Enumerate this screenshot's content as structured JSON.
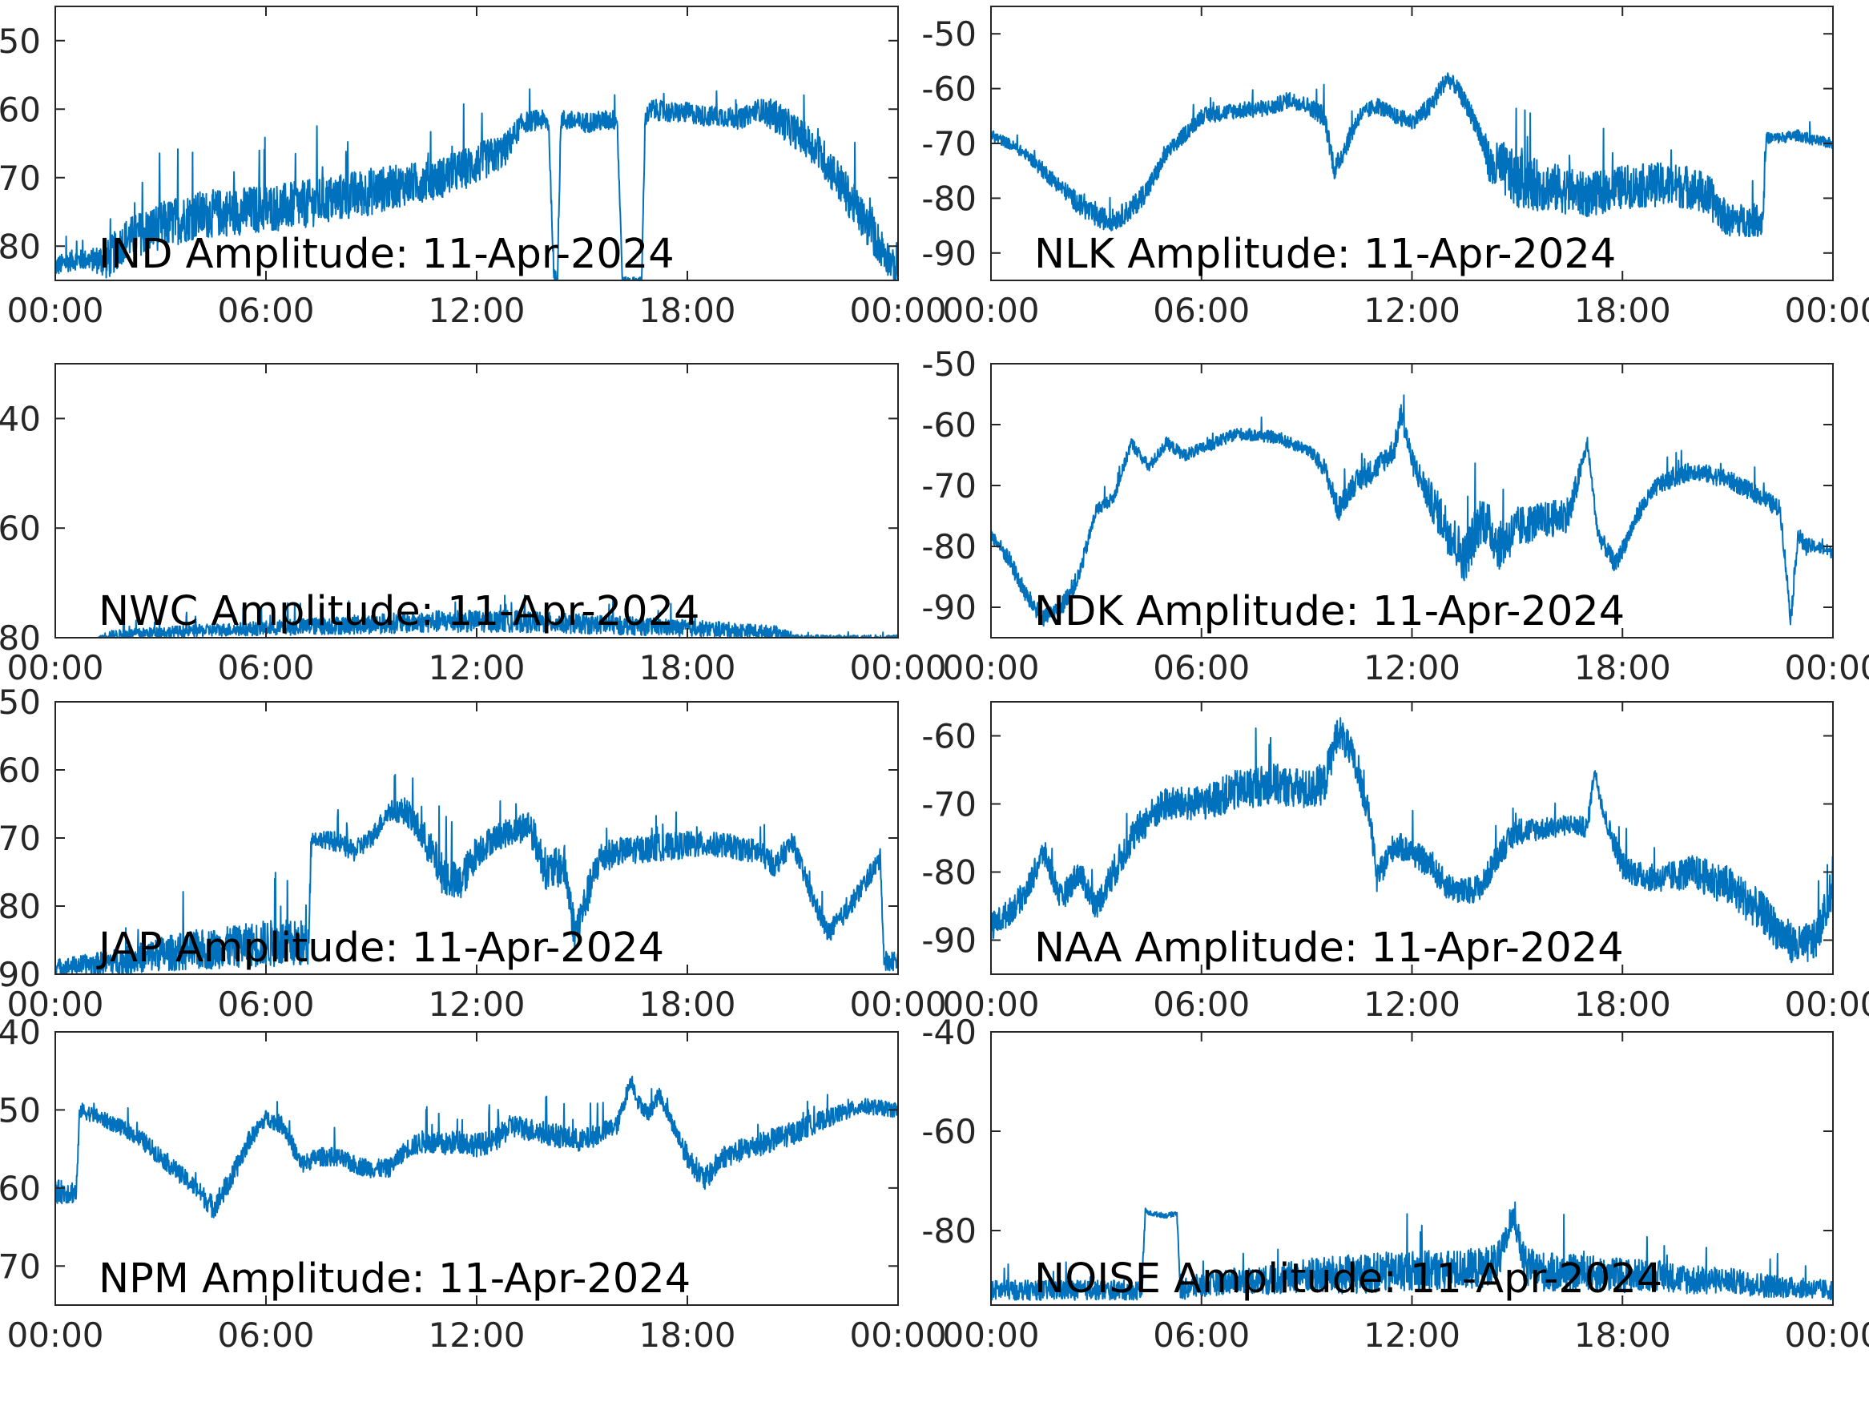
{
  "figure": {
    "x_tick_labels": [
      "00:00",
      "06:00",
      "12:00",
      "18:00",
      "00:00"
    ],
    "line_color": "#0072BD"
  },
  "chart_data": [
    {
      "type": "line",
      "title": "IND Amplitude: 11-Apr-2024",
      "x_range": [
        "00:00",
        "24:00"
      ],
      "ylim": [
        -85,
        -45
      ],
      "y_ticks": [
        -50,
        -60,
        -70,
        -80
      ],
      "y_tick_labels": [
        "50",
        "60",
        "70",
        "80"
      ],
      "series": [
        {
          "x": [
            0,
            0.5,
            1,
            1.5,
            2,
            3,
            4,
            5,
            6,
            7,
            8,
            9,
            10,
            11,
            12,
            12.8,
            13.3,
            13.8,
            14.05,
            14.2,
            14.3,
            14.4,
            15,
            16,
            16.15,
            16.2,
            16.5,
            16.7,
            16.8,
            16.85,
            17,
            17.5,
            18,
            18.5,
            19,
            19.5,
            20,
            20.5,
            21,
            21.5,
            22,
            22.5,
            23,
            23.5,
            24
          ],
          "y": [
            -83,
            -82,
            -82,
            -82,
            -79,
            -77,
            -75.5,
            -75,
            -74.5,
            -74,
            -73,
            -72,
            -71,
            -70,
            -68,
            -66,
            -62,
            -61.5,
            -62,
            -85,
            -85,
            -61.5,
            -62,
            -61.5,
            -85,
            -85,
            -85,
            -85,
            -61,
            -61,
            -60,
            -60.5,
            -60.5,
            -61,
            -61,
            -61.5,
            -60,
            -61,
            -63,
            -65,
            -68,
            -72,
            -76,
            -80,
            -84
          ],
          "y_spread": [
            1.5,
            1.5,
            1.5,
            3,
            3,
            3.5,
            3.5,
            3.5,
            3.5,
            3.5,
            3.5,
            3.5,
            3,
            3,
            3,
            2.5,
            1.5,
            1.5,
            1.5,
            0.5,
            0.5,
            1.5,
            1.5,
            1.5,
            0.5,
            0.5,
            0.5,
            0.5,
            1.5,
            1.5,
            1.5,
            1.5,
            1.5,
            1.5,
            1.5,
            1.5,
            1.5,
            2.5,
            2.5,
            2.5,
            3,
            3,
            3,
            3,
            2
          ]
        }
      ]
    },
    {
      "type": "line",
      "title": "NLK Amplitude: 11-Apr-2024",
      "x_range": [
        "00:00",
        "24:00"
      ],
      "ylim": [
        -95,
        -45
      ],
      "y_ticks": [
        -50,
        -60,
        -70,
        -80,
        -90
      ],
      "y_tick_labels": [
        "-50",
        "-60",
        "-70",
        "-80",
        "-90"
      ],
      "series": [
        {
          "x": [
            0,
            0.5,
            1,
            1.5,
            2,
            2.5,
            3,
            3.5,
            4,
            4.5,
            5,
            6,
            7,
            8,
            8.5,
            9,
            9.5,
            9.8,
            10,
            10.5,
            11,
            11.5,
            12,
            12.5,
            13,
            13.3,
            13.8,
            14.3,
            14.5,
            15,
            16,
            17,
            18,
            19,
            20,
            20.5,
            21,
            21.5,
            22,
            22.1,
            22.5,
            23,
            23.5,
            24
          ],
          "y": [
            -68.5,
            -70,
            -72,
            -75,
            -78,
            -81,
            -83.5,
            -84,
            -82,
            -78,
            -72,
            -65,
            -64,
            -63.5,
            -62,
            -63,
            -65,
            -75,
            -72,
            -65,
            -63,
            -65,
            -66,
            -63.5,
            -58,
            -60,
            -66,
            -75,
            -74,
            -77,
            -78,
            -79.5,
            -78,
            -77.5,
            -78,
            -80,
            -84,
            -84,
            -84,
            -69,
            -69,
            -68.5,
            -69.5,
            -70
          ],
          "y_spread": [
            1,
            1,
            1,
            1.5,
            1.5,
            2,
            2,
            2,
            2,
            2,
            1.5,
            1.5,
            1.5,
            1.5,
            1.5,
            1.5,
            2,
            2,
            2,
            1.5,
            1.5,
            1.5,
            1.5,
            2,
            1.5,
            1.5,
            2,
            4,
            5,
            5,
            4.5,
            4,
            4,
            4,
            4,
            4,
            3,
            3,
            3,
            1,
            1,
            1,
            1,
            1
          ]
        }
      ]
    },
    {
      "type": "line",
      "title": "NWC Amplitude: 11-Apr-2024",
      "x_range": [
        "00:00",
        "24:00"
      ],
      "ylim": [
        -80,
        -30
      ],
      "y_ticks": [
        -40,
        -60,
        -80
      ],
      "y_tick_labels": [
        "40",
        "60",
        "80"
      ],
      "series": [
        {
          "x": [
            0,
            1.2,
            1.5,
            3,
            5,
            7,
            9,
            11,
            13,
            15,
            17,
            19,
            20.5,
            21.2
          ],
          "y": [
            -80,
            -80,
            -79.5,
            -79,
            -78.5,
            -78,
            -77.5,
            -77,
            -77,
            -77.5,
            -78,
            -78.5,
            -79,
            -80
          ],
          "y_spread": [
            0,
            0,
            0.8,
            1,
            1.2,
            1.5,
            1.8,
            2,
            2,
            1.8,
            1.6,
            1.4,
            1.2,
            0.5
          ]
        }
      ]
    },
    {
      "type": "line",
      "title": "NDK Amplitude: 11-Apr-2024",
      "x_range": [
        "00:00",
        "24:00"
      ],
      "ylim": [
        -95,
        -50
      ],
      "y_ticks": [
        -50,
        -60,
        -70,
        -80,
        -90
      ],
      "y_tick_labels": [
        "-50",
        "-60",
        "-70",
        "-80",
        "-90"
      ],
      "series": [
        {
          "x": [
            0,
            0.5,
            1,
            1.5,
            2,
            2.5,
            3,
            3.5,
            4,
            4.5,
            5,
            5.5,
            6,
            7,
            8,
            9,
            9.5,
            9.9,
            10.3,
            11,
            11.5,
            11.7,
            12,
            12.5,
            13,
            13.5,
            14,
            14.5,
            15,
            15.5,
            16,
            16.5,
            17,
            17.1,
            17.3,
            17.8,
            18.5,
            19,
            20,
            21,
            22,
            22.5,
            22.8,
            23,
            23.2,
            23.5,
            24
          ],
          "y": [
            -78,
            -82,
            -88,
            -92,
            -90,
            -85,
            -74,
            -72,
            -63,
            -67,
            -63,
            -65,
            -64,
            -61.5,
            -62,
            -64,
            -67,
            -74,
            -70,
            -67,
            -64,
            -58,
            -66,
            -72,
            -77,
            -82,
            -75,
            -80,
            -77,
            -76,
            -75.5,
            -74.5,
            -63,
            -68,
            -78,
            -83,
            -74,
            -70,
            -67.5,
            -69,
            -72,
            -74,
            -92,
            -78,
            -80,
            -80,
            -81
          ],
          "y_spread": [
            1,
            1.5,
            1.5,
            1.5,
            1.5,
            1.5,
            1,
            1,
            1,
            1,
            1,
            1,
            1,
            1,
            1,
            1,
            1.5,
            2,
            2,
            2,
            2,
            2,
            2,
            3,
            4,
            4,
            4,
            4,
            3.5,
            3,
            3,
            3,
            1,
            1,
            1.5,
            1.5,
            1.5,
            1.5,
            1.5,
            1.5,
            1.5,
            1.5,
            1.5,
            1.5,
            1.5,
            1,
            1
          ]
        }
      ]
    },
    {
      "type": "line",
      "title": "JAP Amplitude: 11-Apr-2024",
      "x_range": [
        "00:00",
        "24:00"
      ],
      "ylim": [
        -90,
        -50
      ],
      "y_ticks": [
        -50,
        -60,
        -70,
        -80,
        -90
      ],
      "y_tick_labels": [
        "50",
        "60",
        "70",
        "80",
        "90"
      ],
      "series": [
        {
          "x": [
            0,
            1,
            2,
            3,
            4,
            5,
            6,
            7,
            7.2,
            7.3,
            8,
            8.5,
            9,
            9.5,
            10,
            10.5,
            11,
            11.5,
            12,
            12.5,
            13,
            13.5,
            14,
            14.5,
            14.8,
            15.5,
            16,
            17,
            18,
            19,
            20,
            20.5,
            21,
            21.5,
            22,
            22.5,
            23,
            23.5,
            23.6,
            24
          ],
          "y": [
            -89,
            -88.5,
            -88,
            -87,
            -86.5,
            -86,
            -85.5,
            -85.5,
            -86,
            -70,
            -70.5,
            -72,
            -70,
            -66,
            -66,
            -70,
            -75,
            -77,
            -72,
            -70,
            -69,
            -68,
            -75,
            -74,
            -84,
            -73,
            -72,
            -71.5,
            -71,
            -71,
            -72,
            -74,
            -70.5,
            -78,
            -84,
            -81,
            -77,
            -73,
            -88,
            -88
          ],
          "y_spread": [
            1.2,
            1.5,
            2,
            2.5,
            3,
            3,
            3.5,
            3.5,
            3,
            1,
            1.5,
            1.5,
            1.5,
            1.5,
            2,
            2.5,
            3,
            3,
            2.5,
            2,
            2,
            2.5,
            3,
            3,
            3,
            2.5,
            2,
            2,
            2,
            1.8,
            1.8,
            1.8,
            1.5,
            1.5,
            1.5,
            1.5,
            1.5,
            1.5,
            1.5,
            1.5
          ]
        }
      ]
    },
    {
      "type": "line",
      "title": "NAA Amplitude: 11-Apr-2024",
      "x_range": [
        "00:00",
        "24:00"
      ],
      "ylim": [
        -95,
        -55
      ],
      "y_ticks": [
        -60,
        -70,
        -80,
        -90
      ],
      "y_tick_labels": [
        "-60",
        "-70",
        "-80",
        "-90"
      ],
      "series": [
        {
          "x": [
            0,
            0.5,
            1,
            1.5,
            2,
            2.5,
            3,
            3.5,
            4,
            4.5,
            5,
            6,
            7,
            8,
            9,
            9.5,
            9.9,
            10.3,
            10.8,
            11,
            11.1,
            11.5,
            12,
            12.5,
            13,
            13.5,
            14,
            14.5,
            15,
            16,
            16.5,
            17,
            17.2,
            17.5,
            18,
            18.5,
            19,
            20,
            21,
            22,
            22.5,
            23,
            23.5,
            24
          ],
          "y": [
            -88,
            -86,
            -83,
            -77,
            -84,
            -80,
            -85,
            -80,
            -75,
            -72,
            -70,
            -70,
            -68,
            -67,
            -68,
            -67,
            -59,
            -63,
            -72,
            -81,
            -80,
            -76,
            -77,
            -79,
            -82,
            -83,
            -82,
            -77,
            -74,
            -73.5,
            -73,
            -73.5,
            -65,
            -72,
            -79,
            -80.5,
            -81,
            -80,
            -82,
            -86,
            -89,
            -91,
            -90,
            -83
          ],
          "y_spread": [
            2,
            2,
            2,
            2,
            2,
            2,
            2,
            2.5,
            2.5,
            2.5,
            2.5,
            2.5,
            3,
            3,
            3,
            3,
            2.5,
            2.5,
            2,
            2,
            2,
            2,
            2,
            2,
            2,
            2,
            2,
            2,
            2,
            1.5,
            1.5,
            1.5,
            1,
            1.5,
            2,
            2,
            2,
            2.5,
            3,
            3,
            3,
            3,
            3,
            2
          ]
        }
      ]
    },
    {
      "type": "line",
      "title": "NPM Amplitude: 11-Apr-2024",
      "x_range": [
        "00:00",
        "24:00"
      ],
      "ylim": [
        -75,
        -40
      ],
      "y_ticks": [
        -40,
        -50,
        -60,
        -70
      ],
      "y_tick_labels": [
        "40",
        "50",
        "60",
        "70"
      ],
      "series": [
        {
          "x": [
            0,
            0.6,
            0.7,
            1,
            1.5,
            2,
            2.5,
            3,
            3.5,
            4,
            4.5,
            5,
            5.5,
            6,
            6.5,
            7,
            7.5,
            8,
            8.5,
            9,
            9.5,
            10,
            10.5,
            11,
            11.5,
            12,
            12.5,
            13,
            14,
            15,
            16,
            16.4,
            16.6,
            16.9,
            17.2,
            17.5,
            18,
            18.5,
            19,
            20,
            21,
            22,
            23,
            24
          ],
          "y": [
            -60.5,
            -60.5,
            -50,
            -50.5,
            -51.5,
            -52.5,
            -54,
            -56,
            -58,
            -60,
            -62.5,
            -59,
            -54,
            -51,
            -52,
            -57,
            -56,
            -56,
            -57,
            -57.5,
            -57.5,
            -55,
            -54,
            -54.5,
            -54,
            -54.5,
            -54,
            -52,
            -53,
            -54,
            -52,
            -46,
            -49,
            -50.5,
            -48,
            -51,
            -56,
            -59,
            -56,
            -54.5,
            -53,
            -51,
            -49.5,
            -50
          ],
          "y_spread": [
            1.5,
            1.5,
            1,
            1,
            1,
            1,
            1.2,
            1.2,
            1.2,
            1.2,
            1.5,
            1.5,
            1.2,
            1,
            1.2,
            1.2,
            1.2,
            1.2,
            1.2,
            1.2,
            1.2,
            1.2,
            1.5,
            1.5,
            1.5,
            1.5,
            1.5,
            1.5,
            1.5,
            1.5,
            1.2,
            1,
            1,
            1,
            1,
            1,
            1.5,
            1.5,
            1.5,
            1.5,
            1.5,
            1.2,
            1,
            1
          ]
        }
      ]
    },
    {
      "type": "line",
      "title": "NOISE Amplitude: 11-Apr-2024",
      "x_range": [
        "00:00",
        "24:00"
      ],
      "ylim": [
        -95,
        -40
      ],
      "y_ticks": [
        -40,
        -60,
        -80
      ],
      "y_tick_labels": [
        "-40",
        "-60",
        "-80"
      ],
      "series": [
        {
          "x": [
            0,
            1,
            2,
            3,
            4,
            4.3,
            4.4,
            4.5,
            5,
            5.3,
            5.4,
            6,
            7,
            8,
            9,
            10,
            11,
            12,
            13,
            14,
            14.5,
            14.9,
            15.2,
            15.5,
            16,
            17,
            18,
            19,
            20,
            21,
            22,
            23,
            24
          ],
          "y": [
            -92,
            -92,
            -92,
            -92,
            -92,
            -92,
            -76,
            -76.5,
            -77,
            -76.5,
            -92,
            -91,
            -90,
            -90,
            -89,
            -89,
            -88.5,
            -88,
            -88,
            -87.5,
            -86,
            -77,
            -87,
            -88,
            -88.5,
            -88.5,
            -89,
            -89,
            -90,
            -90,
            -91,
            -91.5,
            -92
          ],
          "y_spread": [
            2,
            2,
            2,
            2,
            2,
            2,
            0.5,
            0.5,
            0.5,
            0.5,
            2,
            2.5,
            2.5,
            3,
            3.5,
            4,
            4,
            4,
            4,
            4,
            4,
            2,
            4,
            4,
            4,
            3.5,
            3.5,
            3,
            3,
            2.5,
            2.5,
            2,
            2
          ]
        }
      ]
    }
  ]
}
